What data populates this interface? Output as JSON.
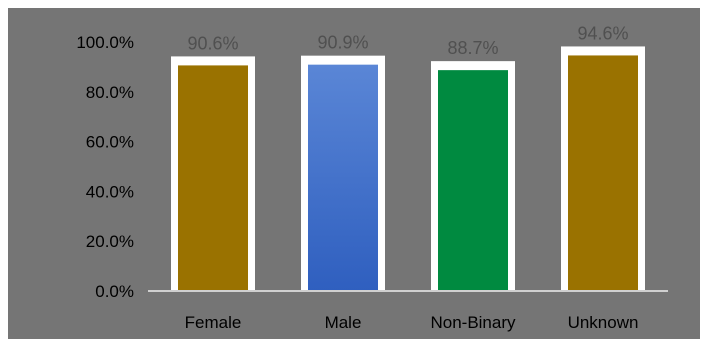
{
  "chart_data": {
    "type": "bar",
    "title": "",
    "xlabel": "",
    "ylabel": "",
    "categories": [
      "Female",
      "Male",
      "Non-Binary",
      "Unknown"
    ],
    "values": [
      90.6,
      90.9,
      88.7,
      94.6
    ],
    "data_labels": [
      "90.6%",
      "90.9%",
      "88.7%",
      "94.6%"
    ],
    "ylim": [
      0,
      100
    ],
    "yticks": [
      0,
      20,
      40,
      60,
      80,
      100
    ],
    "ytick_labels": [
      "0.0%",
      "20.0%",
      "40.0%",
      "60.0%",
      "80.0%",
      "100.0%"
    ],
    "grid": false,
    "legend": "none",
    "bar_colors": [
      "#9a7200",
      "#4a78cf",
      "#008a40",
      "#9a7200"
    ],
    "background_color": "#757575"
  }
}
